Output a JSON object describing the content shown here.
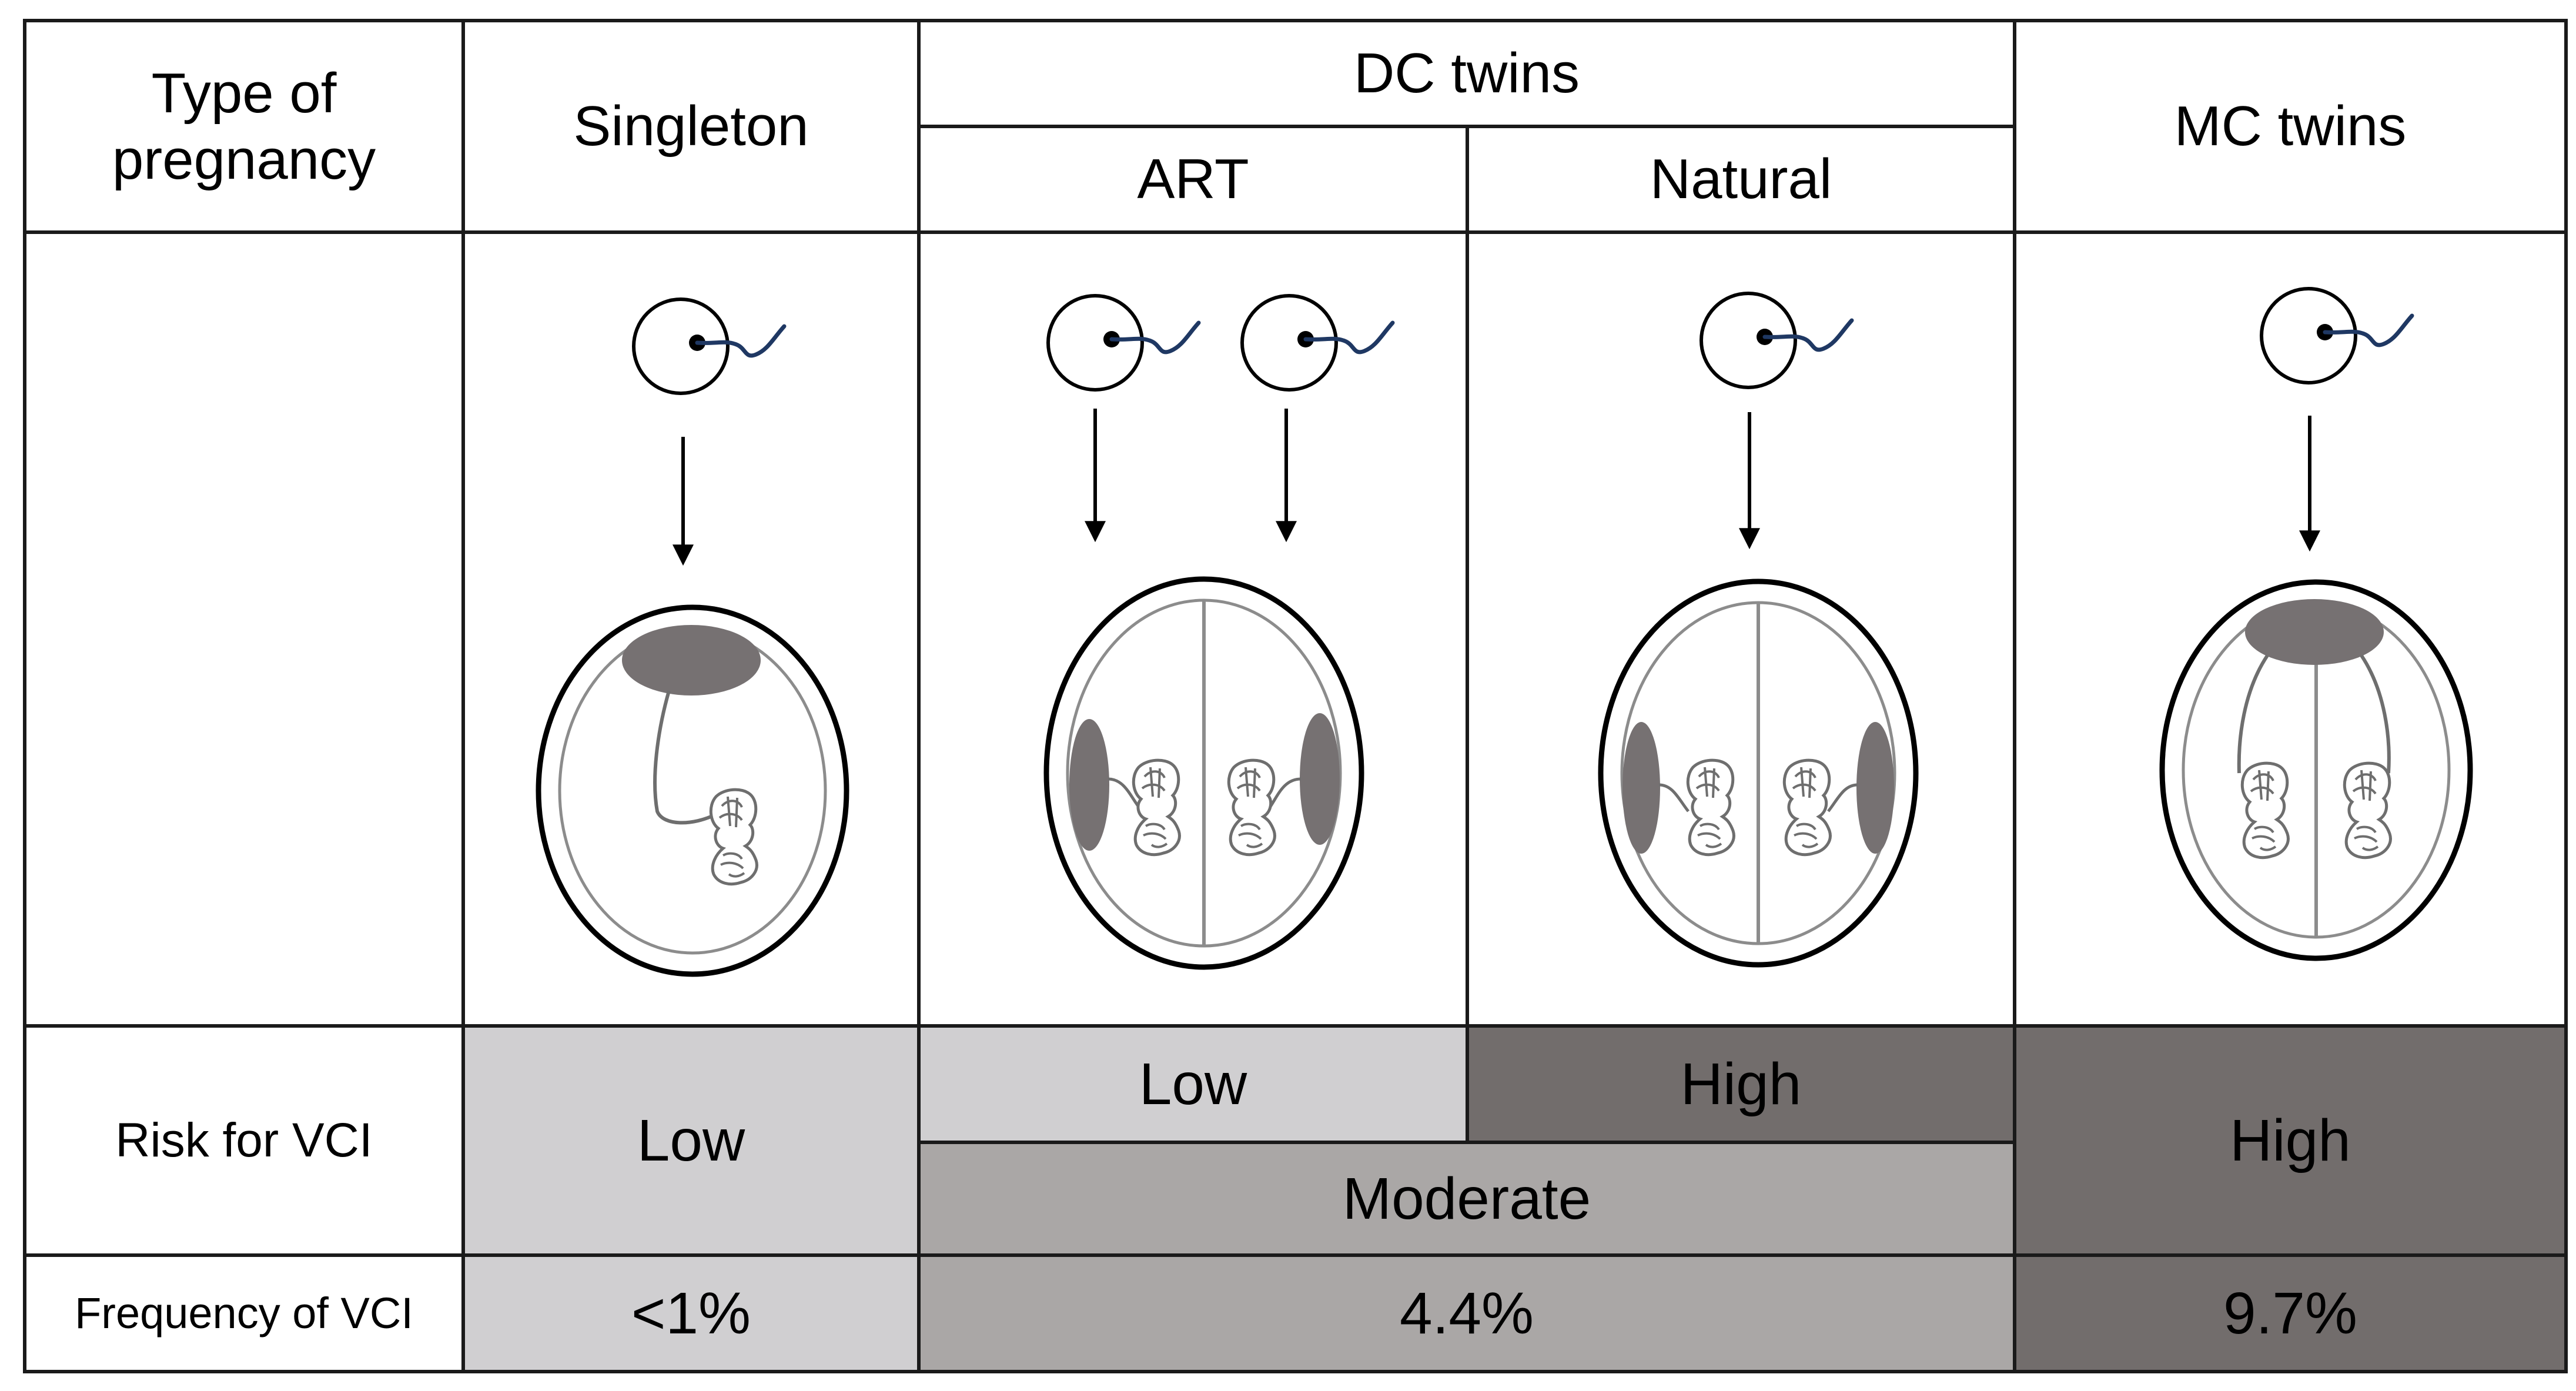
{
  "header": {
    "type_of_pregnancy": "Type of\npregnancy",
    "singleton": "Singleton",
    "dc_twins": "DC twins",
    "art": "ART",
    "natural": "Natural",
    "mc_twins": "MC twins"
  },
  "rows": {
    "risk_label": "Risk for VCI",
    "frequency_label": "Frequency of VCI"
  },
  "risk": {
    "singleton": "Low",
    "dc_art": "Low",
    "dc_natural": "High",
    "dc_overall": "Moderate",
    "mc": "High"
  },
  "frequency": {
    "singleton": "<1%",
    "dc": "4.4%",
    "mc": "9.7%"
  },
  "colors": {
    "low": "#d0cfd1",
    "moderate": "#aaa7a6",
    "high": "#726d6c",
    "placenta": "#767172",
    "membrane": "#8c8c8c",
    "sperm": "#1f3863",
    "grid": "#1a1a1a"
  },
  "illustrations": [
    {
      "name": "singleton-diagram",
      "icons": [
        "egg-icon",
        "sperm-icon",
        "arrow-down-icon",
        "gestational-sac-icon",
        "placenta-icon",
        "umbilical-cord-icon",
        "fetus-icon"
      ]
    },
    {
      "name": "dc-art-diagram",
      "icons": [
        "egg-icon",
        "sperm-icon",
        "arrow-down-icon",
        "gestational-sac-icon",
        "dividing-membrane-icon",
        "placenta-icon",
        "fetus-icon"
      ]
    },
    {
      "name": "dc-natural-diagram",
      "icons": [
        "egg-icon",
        "sperm-icon",
        "arrow-down-icon",
        "gestational-sac-icon",
        "dividing-membrane-icon",
        "placenta-icon",
        "fetus-icon"
      ]
    },
    {
      "name": "mc-diagram",
      "icons": [
        "egg-icon",
        "sperm-icon",
        "arrow-down-icon",
        "gestational-sac-icon",
        "shared-placenta-icon",
        "dividing-membrane-icon",
        "fetus-icon"
      ]
    }
  ]
}
